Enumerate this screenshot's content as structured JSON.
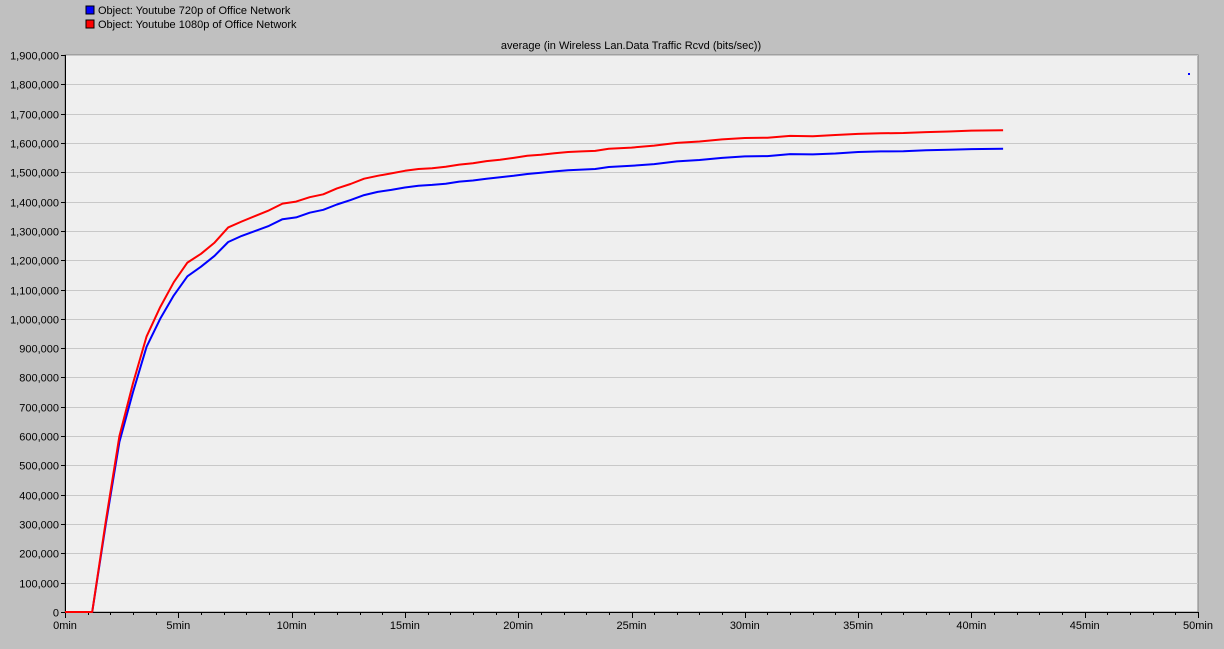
{
  "legend": [
    {
      "label": "Object: Youtube 720p of Office Network",
      "color": "#0000ff"
    },
    {
      "label": "Object: Youtube 1080p of Office Network",
      "color": "#ff0000"
    }
  ],
  "chart_data": {
    "type": "line",
    "title": "average (in Wireless Lan.Data Traffic Rcvd (bits/sec))",
    "xlabel": "",
    "ylabel": "",
    "xlim": [
      0,
      50
    ],
    "ylim": [
      0,
      1900000
    ],
    "grid": true,
    "legend_position": "top-left",
    "x_ticks": [
      {
        "value": 0,
        "label": "0min"
      },
      {
        "value": 5,
        "label": "5min"
      },
      {
        "value": 10,
        "label": "10min"
      },
      {
        "value": 15,
        "label": "15min"
      },
      {
        "value": 20,
        "label": "20min"
      },
      {
        "value": 25,
        "label": "25min"
      },
      {
        "value": 30,
        "label": "30min"
      },
      {
        "value": 35,
        "label": "35min"
      },
      {
        "value": 40,
        "label": "40min"
      },
      {
        "value": 45,
        "label": "45min"
      },
      {
        "value": 50,
        "label": "50min"
      }
    ],
    "y_ticks": [
      {
        "value": 0,
        "label": "0"
      },
      {
        "value": 100000,
        "label": "100,000"
      },
      {
        "value": 200000,
        "label": "200,000"
      },
      {
        "value": 300000,
        "label": "300,000"
      },
      {
        "value": 400000,
        "label": "400,000"
      },
      {
        "value": 500000,
        "label": "500,000"
      },
      {
        "value": 600000,
        "label": "600,000"
      },
      {
        "value": 700000,
        "label": "700,000"
      },
      {
        "value": 800000,
        "label": "800,000"
      },
      {
        "value": 900000,
        "label": "900,000"
      },
      {
        "value": 1000000,
        "label": "1,000,000"
      },
      {
        "value": 1100000,
        "label": "1,100,000"
      },
      {
        "value": 1200000,
        "label": "1,200,000"
      },
      {
        "value": 1300000,
        "label": "1,300,000"
      },
      {
        "value": 1400000,
        "label": "1,400,000"
      },
      {
        "value": 1500000,
        "label": "1,500,000"
      },
      {
        "value": 1600000,
        "label": "1,600,000"
      },
      {
        "value": 1700000,
        "label": "1,700,000"
      },
      {
        "value": 1800000,
        "label": "1,800,000"
      },
      {
        "value": 1900000,
        "label": "1,900,000"
      }
    ],
    "series": [
      {
        "name": "Object: Youtube 720p of Office Network",
        "color": "#0000ff",
        "x": [
          0,
          1.2,
          1.8,
          2.4,
          3.0,
          3.6,
          4.2,
          4.8,
          5.4,
          6.0,
          6.6,
          7.2,
          7.8,
          8.4,
          9.0,
          9.6,
          10.2,
          10.8,
          11.4,
          12.0,
          12.6,
          13.2,
          13.8,
          14.4,
          15.0,
          15.6,
          16.2,
          16.8,
          17.4,
          18.0,
          18.6,
          19.2,
          19.8,
          20.4,
          21.0,
          21.6,
          22.2,
          22.8,
          23.4,
          24.0,
          25.0,
          26.0,
          27.0,
          28.0,
          29.0,
          30.0,
          31.0,
          32.0,
          33.0,
          34.0,
          35.0,
          36.0,
          37.0,
          38.0,
          39.0,
          40.0,
          41.4
        ],
        "y": [
          0,
          0,
          300000,
          580000,
          750000,
          905000,
          1000000,
          1080000,
          1145000,
          1178000,
          1215000,
          1262000,
          1283000,
          1300000,
          1317000,
          1340000,
          1346000,
          1362000,
          1372000,
          1390000,
          1405000,
          1422000,
          1433000,
          1440000,
          1448000,
          1454000,
          1457000,
          1461000,
          1468000,
          1472000,
          1478000,
          1483000,
          1488000,
          1494000,
          1498000,
          1503000,
          1507000,
          1509000,
          1511000,
          1518000,
          1522000,
          1528000,
          1537000,
          1542000,
          1549000,
          1554000,
          1555000,
          1562000,
          1561000,
          1564000,
          1569000,
          1571000,
          1572000,
          1575000,
          1577000,
          1579000,
          1580000
        ]
      },
      {
        "name": "Object: Youtube 1080p of Office Network",
        "color": "#ff0000",
        "x": [
          0,
          1.2,
          1.8,
          2.4,
          3.0,
          3.6,
          4.2,
          4.8,
          5.4,
          6.0,
          6.6,
          7.2,
          7.8,
          8.4,
          9.0,
          9.6,
          10.2,
          10.8,
          11.4,
          12.0,
          12.6,
          13.2,
          13.8,
          14.4,
          15.0,
          15.6,
          16.2,
          16.8,
          17.4,
          18.0,
          18.6,
          19.2,
          19.8,
          20.4,
          21.0,
          21.6,
          22.2,
          22.8,
          23.4,
          24.0,
          25.0,
          26.0,
          27.0,
          28.0,
          29.0,
          30.0,
          31.0,
          32.0,
          33.0,
          34.0,
          35.0,
          36.0,
          37.0,
          38.0,
          39.0,
          40.0,
          41.4
        ],
        "y": [
          0,
          0,
          310000,
          600000,
          780000,
          940000,
          1040000,
          1125000,
          1192000,
          1222000,
          1260000,
          1312000,
          1332000,
          1351000,
          1370000,
          1393000,
          1400000,
          1415000,
          1425000,
          1445000,
          1460000,
          1478000,
          1488000,
          1496000,
          1505000,
          1511000,
          1514000,
          1519000,
          1526000,
          1531000,
          1538000,
          1543000,
          1549000,
          1556000,
          1560000,
          1565000,
          1569000,
          1571000,
          1573000,
          1580000,
          1584000,
          1591000,
          1600000,
          1605000,
          1612000,
          1617000,
          1618000,
          1624000,
          1623000,
          1627000,
          1631000,
          1633000,
          1634000,
          1637000,
          1639000,
          1642000,
          1643000
        ]
      }
    ]
  }
}
